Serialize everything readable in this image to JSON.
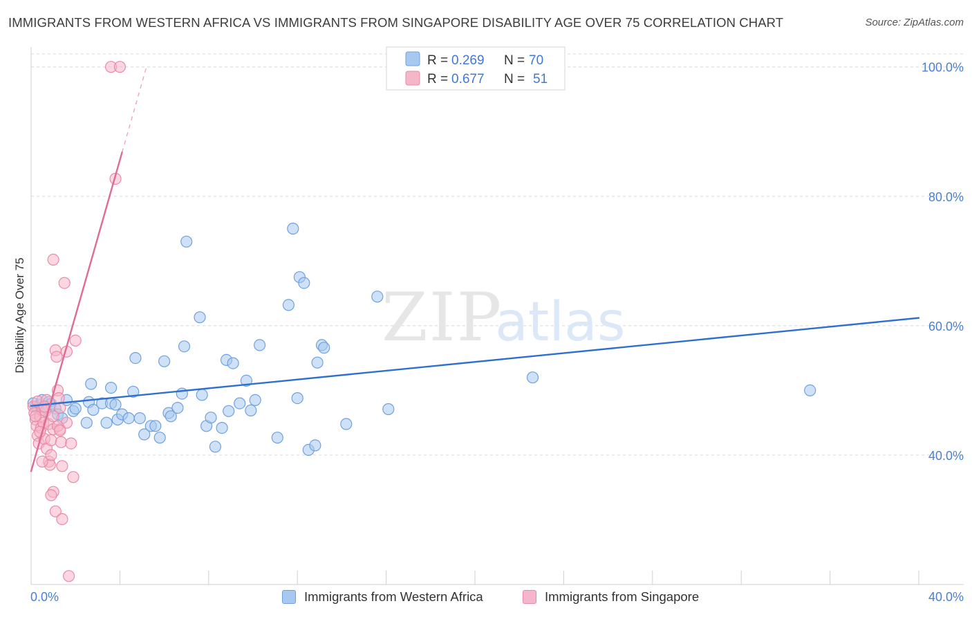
{
  "header": {
    "title": "IMMIGRANTS FROM WESTERN AFRICA VS IMMIGRANTS FROM SINGAPORE DISABILITY AGE OVER 75 CORRELATION CHART",
    "source": "Source: ZipAtlas.com"
  },
  "watermark": {
    "zip": "ZIP",
    "atlas": "atlas"
  },
  "colors": {
    "blue_fill": "#a8c8f0",
    "blue_stroke": "#6fa0de",
    "blue_line": "#2f6fd0",
    "pink_fill": "#f6b6c9",
    "pink_stroke": "#ea8aa9",
    "pink_line": "#e06a95",
    "axis_text": "#4a7fd0",
    "grid": "#d8d8d8"
  },
  "chart_data": {
    "type": "scatter",
    "title": "IMMIGRANTS FROM WESTERN AFRICA VS IMMIGRANTS FROM SINGAPORE DISABILITY AGE OVER 75 CORRELATION CHART",
    "xlabel": "",
    "ylabel": "Disability Age Over 75",
    "xlim": [
      0,
      40
    ],
    "ylim": [
      20,
      102
    ],
    "x_tick_labels": [
      "0.0%",
      "40.0%"
    ],
    "y_ticks": [
      40,
      60,
      80,
      100
    ],
    "y_tick_labels": [
      "40.0%",
      "60.0%",
      "80.0%",
      "100.0%"
    ],
    "grid": true,
    "legend_stats": [
      {
        "r_label": "R =",
        "r_value": "0.269",
        "n_label": "N =",
        "n_value": "70"
      },
      {
        "r_label": "R =",
        "r_value": "0.677",
        "n_label": "N =",
        "n_value": "51"
      }
    ],
    "series": [
      {
        "name": "Immigrants from Western Africa",
        "color": "blue",
        "r": 0.269,
        "n": 70,
        "trend": {
          "x": [
            0,
            40
          ],
          "y": [
            47.6,
            61.2
          ]
        },
        "points": [
          [
            0.1,
            48.0
          ],
          [
            0.2,
            47.5
          ],
          [
            0.3,
            47.2
          ],
          [
            0.4,
            47.8
          ],
          [
            0.5,
            48.5
          ],
          [
            0.6,
            47.3
          ],
          [
            0.8,
            48.2
          ],
          [
            0.9,
            47.9
          ],
          [
            1.1,
            47.2
          ],
          [
            1.2,
            46.3
          ],
          [
            1.4,
            45.7
          ],
          [
            1.9,
            46.8
          ],
          [
            2.0,
            47.2
          ],
          [
            2.5,
            45.0
          ],
          [
            2.6,
            48.2
          ],
          [
            2.8,
            47.0
          ],
          [
            3.2,
            48.0
          ],
          [
            3.4,
            45.0
          ],
          [
            3.6,
            48.0
          ],
          [
            3.8,
            47.8
          ],
          [
            3.9,
            45.5
          ],
          [
            4.1,
            46.3
          ],
          [
            4.4,
            45.7
          ],
          [
            4.7,
            55.0
          ],
          [
            4.9,
            45.7
          ],
          [
            5.1,
            43.2
          ],
          [
            5.4,
            44.5
          ],
          [
            5.6,
            44.5
          ],
          [
            5.8,
            42.7
          ],
          [
            6.0,
            54.5
          ],
          [
            6.2,
            46.5
          ],
          [
            6.3,
            46.0
          ],
          [
            6.6,
            47.3
          ],
          [
            6.8,
            49.5
          ],
          [
            6.9,
            56.8
          ],
          [
            7.6,
            61.3
          ],
          [
            7.7,
            49.3
          ],
          [
            7.9,
            44.5
          ],
          [
            8.1,
            45.8
          ],
          [
            8.3,
            41.3
          ],
          [
            8.6,
            44.2
          ],
          [
            8.8,
            54.7
          ],
          [
            8.9,
            46.8
          ],
          [
            9.1,
            54.2
          ],
          [
            9.4,
            48.0
          ],
          [
            9.7,
            51.5
          ],
          [
            9.9,
            46.9
          ],
          [
            10.1,
            48.5
          ],
          [
            10.3,
            57.0
          ],
          [
            11.1,
            42.7
          ],
          [
            11.6,
            63.2
          ],
          [
            11.8,
            75.0
          ],
          [
            12.0,
            48.8
          ],
          [
            12.1,
            67.5
          ],
          [
            12.3,
            66.6
          ],
          [
            12.5,
            40.8
          ],
          [
            12.8,
            41.5
          ],
          [
            12.9,
            54.3
          ],
          [
            13.1,
            57.0
          ],
          [
            14.2,
            44.8
          ],
          [
            15.6,
            64.5
          ],
          [
            16.1,
            47.1
          ],
          [
            22.6,
            52.0
          ],
          [
            35.1,
            50.0
          ],
          [
            7.0,
            73.0
          ],
          [
            2.7,
            51.0
          ],
          [
            3.6,
            50.4
          ],
          [
            4.6,
            49.8
          ],
          [
            13.2,
            56.6
          ],
          [
            1.6,
            48.5
          ]
        ]
      },
      {
        "name": "Immigrants from Singapore",
        "color": "pink",
        "r": 0.677,
        "n": 51,
        "trend": {
          "x": [
            0,
            4.1
          ],
          "y": [
            37.5,
            86.8
          ]
        },
        "trend_dashed": {
          "x": [
            4.1,
            5.2
          ],
          "y": [
            86.8,
            100.0
          ]
        },
        "points": [
          [
            0.1,
            47.5
          ],
          [
            0.15,
            46.5
          ],
          [
            0.2,
            45.5
          ],
          [
            0.25,
            44.5
          ],
          [
            0.3,
            48.3
          ],
          [
            0.3,
            43.0
          ],
          [
            0.35,
            41.8
          ],
          [
            0.4,
            46.0
          ],
          [
            0.45,
            44.2
          ],
          [
            0.5,
            47.0
          ],
          [
            0.55,
            45.0
          ],
          [
            0.6,
            42.5
          ],
          [
            0.65,
            46.8
          ],
          [
            0.7,
            48.5
          ],
          [
            0.7,
            41.0
          ],
          [
            0.8,
            44.8
          ],
          [
            0.8,
            39.0
          ],
          [
            0.85,
            38.5
          ],
          [
            0.9,
            42.3
          ],
          [
            0.9,
            40.0
          ],
          [
            1.0,
            44.0
          ],
          [
            1.0,
            34.3
          ],
          [
            1.0,
            70.2
          ],
          [
            1.1,
            31.3
          ],
          [
            1.1,
            56.2
          ],
          [
            1.15,
            55.2
          ],
          [
            1.2,
            50.0
          ],
          [
            1.25,
            48.8
          ],
          [
            1.3,
            47.3
          ],
          [
            1.3,
            44.0
          ],
          [
            1.35,
            42.0
          ],
          [
            1.4,
            38.3
          ],
          [
            1.4,
            30.1
          ],
          [
            1.5,
            66.6
          ],
          [
            1.6,
            56.0
          ],
          [
            1.6,
            45.0
          ],
          [
            1.7,
            21.3
          ],
          [
            1.8,
            41.8
          ],
          [
            1.9,
            36.6
          ],
          [
            2.0,
            57.7
          ],
          [
            0.2,
            46.0
          ],
          [
            0.4,
            43.6
          ],
          [
            0.6,
            47.5
          ],
          [
            1.2,
            44.5
          ],
          [
            1.0,
            46.0
          ],
          [
            0.5,
            39.0
          ],
          [
            0.9,
            33.8
          ],
          [
            1.3,
            43.8
          ],
          [
            3.6,
            100.0
          ],
          [
            4.0,
            100.0
          ],
          [
            3.8,
            82.7
          ]
        ]
      }
    ]
  },
  "legend_bottom": [
    {
      "label": "Immigrants from Western Africa"
    },
    {
      "label": "Immigrants from Singapore"
    }
  ]
}
